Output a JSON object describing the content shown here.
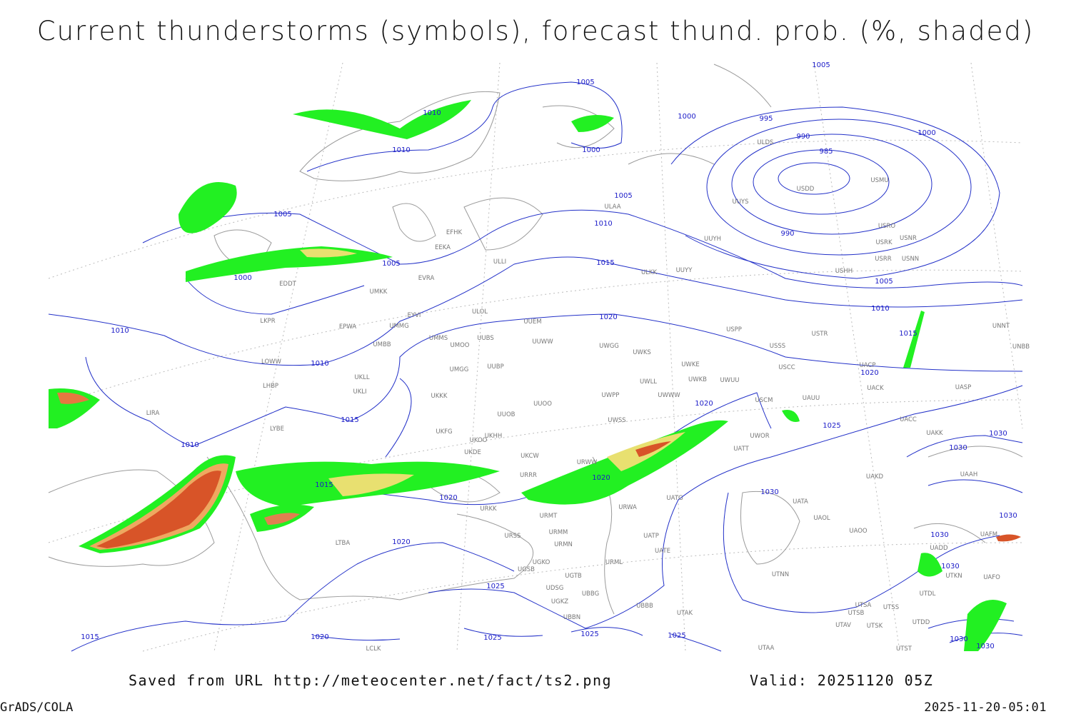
{
  "title": "Current thunderstorms (symbols), forecast thund. prob. (%, shaded)",
  "saved_from": "Saved from URL http://meteocenter.net/fact/ts2.png",
  "valid": "Valid: 20251120 05Z",
  "software": "GrADS/COLA",
  "timestamp": "2025-11-20-05:01",
  "isobar_labels": [
    "1005",
    "1010",
    "1010",
    "1000",
    "995",
    "990",
    "985",
    "1000",
    "1000",
    "1005",
    "1010",
    "1005",
    "1000",
    "1005",
    "990",
    "1015",
    "1005",
    "1010",
    "1020",
    "1015",
    "1010",
    "1010",
    "1020",
    "1020",
    "1015",
    "1025",
    "1030",
    "1010",
    "1030",
    "1020",
    "1015",
    "1020",
    "1030",
    "1030",
    "1030",
    "1020",
    "1030",
    "1025",
    "1015",
    "1020",
    "1025",
    "1025",
    "1025",
    "1030",
    "1030",
    "1005"
  ],
  "station_labels": [
    "ULAA",
    "EFHK",
    "EEKA",
    "EVRA",
    "UMKK",
    "EDDT",
    "ULLI",
    "UUYY",
    "ULKK",
    "UUYH",
    "USDD",
    "UUYS",
    "USMU",
    "ULDS",
    "USRO",
    "USRK",
    "USNR",
    "USRR",
    "USNN",
    "USHH",
    "UMMG",
    "EYVI",
    "ULOL",
    "EPWA",
    "LKPR",
    "UUEM",
    "UMBB",
    "UMMS",
    "UMOO",
    "UUBS",
    "UUWW",
    "UWGG",
    "UWKS",
    "USPP",
    "USTR",
    "USSS",
    "LOWW",
    "UKLL",
    "UUBP",
    "UMGG",
    "UWKE",
    "UWKB",
    "UWUU",
    "UWLL",
    "USCC",
    "UACP",
    "UNNT",
    "UNBB",
    "LHBP",
    "UKLI",
    "UKKK",
    "UWPP",
    "UWWW",
    "UACK",
    "UASP",
    "USCM",
    "UAUU",
    "LIRA",
    "UUOB",
    "UUOO",
    "UWSS",
    "UACC",
    "LYBE",
    "UKFG",
    "UKOO",
    "UKHH",
    "UWOR",
    "UATT",
    "UAKK",
    "UKDE",
    "UKCW",
    "URWW",
    "URRR",
    "UAAH",
    "UAKD",
    "URKK",
    "URMT",
    "URWA",
    "UATG",
    "UATA",
    "UAOL",
    "UAOO",
    "UAFM",
    "UADD",
    "URSS",
    "URMM",
    "URMN",
    "UATP",
    "UATE",
    "UGSB",
    "UGKO",
    "URML",
    "UGTB",
    "UTNN",
    "UTKN",
    "UAFO",
    "UDSG",
    "UGKZ",
    "UBBG",
    "UBBB",
    "UTDL",
    "UTAK",
    "UTSA",
    "UTSS",
    "UTSB",
    "UBBN",
    "UTAV",
    "UTSK",
    "UTDD",
    "LTBA",
    "LCLK",
    "UTAA",
    "UTST"
  ]
}
